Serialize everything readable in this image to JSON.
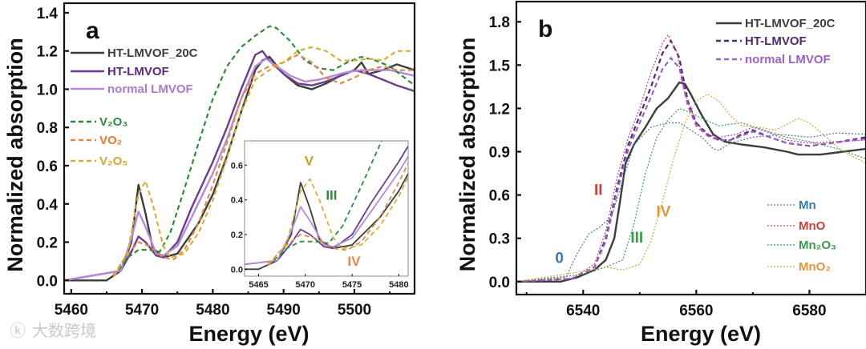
{
  "watermark": "大数跨境",
  "chart_data": [
    {
      "type": "line",
      "panel_label": "a",
      "xlabel": "Energy (eV)",
      "ylabel": "Normalized absorption",
      "xlim": [
        5459,
        5508.5
      ],
      "ylim": [
        -0.07,
        1.45
      ],
      "xticks": [
        5460,
        5470,
        5480,
        5490,
        5500
      ],
      "yticks": [
        0.0,
        0.2,
        0.4,
        0.6,
        0.8,
        1.0,
        1.2,
        1.4
      ],
      "ytick_labels": [
        "0.0",
        "0.2",
        "0.4",
        "0.6",
        "0.8",
        "1.0",
        "1.2",
        "1.4"
      ],
      "legend": "top-left",
      "series": [
        {
          "name": "HT-LMVOF_20C",
          "color": "#3d3d3d",
          "style": "solid",
          "text_color": "#3d3d3d",
          "x": [
            5459,
            5465,
            5467,
            5468.5,
            5469.5,
            5470.5,
            5471.5,
            5473,
            5475,
            5478,
            5480,
            5482,
            5484,
            5486,
            5487,
            5488,
            5490,
            5492,
            5494,
            5496,
            5498,
            5500,
            5501,
            5502,
            5504,
            5506,
            5508.5
          ],
          "y": [
            0,
            0,
            0.05,
            0.2,
            0.5,
            0.35,
            0.17,
            0.12,
            0.14,
            0.3,
            0.45,
            0.65,
            0.88,
            1.1,
            1.15,
            1.17,
            1.08,
            1.02,
            1.0,
            1.03,
            1.07,
            1.1,
            1.14,
            1.08,
            1.1,
            1.13,
            1.1
          ]
        },
        {
          "name": "HT-LMVOF",
          "color": "#6a3d8f",
          "style": "solid",
          "text_color": "#5a2a80",
          "x": [
            5459,
            5467,
            5468.5,
            5469.5,
            5470.5,
            5472,
            5473,
            5475,
            5477,
            5480,
            5482,
            5484,
            5486,
            5487,
            5488,
            5490,
            5492,
            5494,
            5496,
            5498,
            5500,
            5502,
            5504,
            5506,
            5508.5
          ],
          "y": [
            0,
            0.05,
            0.15,
            0.23,
            0.2,
            0.13,
            0.12,
            0.2,
            0.38,
            0.62,
            0.8,
            1.0,
            1.18,
            1.2,
            1.15,
            1.08,
            1.03,
            1.02,
            1.04,
            1.07,
            1.1,
            1.08,
            1.05,
            1.02,
            0.99
          ]
        },
        {
          "name": "normal LMVOF",
          "color": "#b58ad6",
          "style": "solid",
          "text_color": "#a77bcc",
          "x": [
            5459,
            5467,
            5468.5,
            5469.5,
            5470.5,
            5472,
            5473,
            5475,
            5477,
            5480,
            5482,
            5484,
            5486,
            5487.5,
            5489,
            5491,
            5493,
            5495,
            5497,
            5499,
            5501,
            5503,
            5505,
            5508.5
          ],
          "y": [
            0,
            0.05,
            0.22,
            0.36,
            0.28,
            0.14,
            0.13,
            0.18,
            0.33,
            0.56,
            0.74,
            0.95,
            1.12,
            1.16,
            1.12,
            1.07,
            1.04,
            1.05,
            1.07,
            1.09,
            1.1,
            1.1,
            1.1,
            1.07
          ]
        },
        {
          "name": "V₂O₃",
          "color": "#2e8b3e",
          "style": "dashed",
          "text_color": "#2e8b3e",
          "x": [
            5466,
            5468,
            5469.5,
            5471,
            5472.5,
            5474,
            5476,
            5478,
            5480,
            5482,
            5484,
            5486,
            5488,
            5489,
            5491,
            5493,
            5495,
            5497,
            5499,
            5501,
            5503,
            5505,
            5508.5
          ],
          "y": [
            0.02,
            0.12,
            0.16,
            0.16,
            0.15,
            0.25,
            0.48,
            0.72,
            0.95,
            1.12,
            1.22,
            1.28,
            1.33,
            1.32,
            1.25,
            1.15,
            1.11,
            1.1,
            1.14,
            1.17,
            1.15,
            1.12,
            1.02
          ]
        },
        {
          "name": "VO₂",
          "color": "#e08a4a",
          "style": "dashed",
          "text_color": "#e07a3a",
          "x": [
            5466,
            5468,
            5469.5,
            5471,
            5473,
            5474.5,
            5476,
            5478,
            5480,
            5482,
            5484,
            5486,
            5488,
            5490,
            5492,
            5494,
            5496,
            5498,
            5500,
            5502,
            5504,
            5506,
            5508.5
          ],
          "y": [
            0.03,
            0.14,
            0.2,
            0.18,
            0.12,
            0.11,
            0.16,
            0.3,
            0.5,
            0.72,
            0.95,
            1.08,
            1.12,
            1.14,
            1.18,
            1.14,
            1.06,
            1.03,
            1.06,
            1.1,
            1.12,
            1.1,
            1.1
          ]
        },
        {
          "name": "V₂O₅",
          "color": "#d4b03c",
          "style": "dashed",
          "text_color": "#d0a830",
          "x": [
            5466,
            5468,
            5469.5,
            5470.5,
            5471.5,
            5473,
            5474,
            5476,
            5478,
            5480,
            5482,
            5484,
            5486,
            5488,
            5490,
            5492,
            5494,
            5496,
            5498,
            5500,
            5502,
            5504,
            5506,
            5508.5
          ],
          "y": [
            0.02,
            0.15,
            0.45,
            0.52,
            0.4,
            0.18,
            0.12,
            0.14,
            0.25,
            0.42,
            0.64,
            0.88,
            1.05,
            1.1,
            1.14,
            1.2,
            1.22,
            1.2,
            1.15,
            1.15,
            1.16,
            1.15,
            1.2,
            1.2
          ]
        }
      ],
      "inset": {
        "xlim": [
          5463.5,
          5481
        ],
        "ylim": [
          -0.04,
          0.74
        ],
        "xticks": [
          5465,
          5470,
          5475,
          5480
        ],
        "yticks": [
          0.0,
          0.2,
          0.4,
          0.6
        ],
        "ytick_labels": [
          "0.0",
          "0.2",
          "0.4",
          "0.6"
        ],
        "annotations": [
          {
            "text": "V",
            "x": 5470.4,
            "y": 0.6,
            "color": "#c9a22a"
          },
          {
            "text": "III",
            "x": 5472.8,
            "y": 0.4,
            "color": "#2e8b3e"
          },
          {
            "text": "IV",
            "x": 5475.2,
            "y": 0.02,
            "color": "#e08a4a"
          }
        ]
      }
    },
    {
      "type": "line",
      "panel_label": "b",
      "xlabel": "Energy (eV)",
      "ylabel": "Normalized absorption",
      "xlim": [
        6528.2,
        6590
      ],
      "ylim": [
        -0.09,
        1.94
      ],
      "xticks": [
        6540,
        6560,
        6580
      ],
      "yticks": [
        0.0,
        0.3,
        0.6,
        0.9,
        1.2,
        1.5,
        1.8
      ],
      "ytick_labels": [
        "0.0",
        "0.3",
        "0.6",
        "0.9",
        "1.2",
        "1.5",
        "1.8"
      ],
      "legend": "top-right / bottom-right",
      "series": [
        {
          "name": "HT-LMVOF_20C",
          "color": "#3d3d3d",
          "style": "solid",
          "text_color": "#3d3d3d",
          "x": [
            6528,
            6536,
            6539,
            6542,
            6544,
            6545.5,
            6546.5,
            6547.5,
            6549,
            6551,
            6553,
            6555,
            6557,
            6558,
            6559,
            6561,
            6563,
            6565,
            6568,
            6572,
            6576,
            6578,
            6582,
            6586,
            6590
          ],
          "y": [
            0,
            0,
            0.03,
            0.08,
            0.15,
            0.3,
            0.55,
            0.82,
            0.95,
            1.07,
            1.2,
            1.27,
            1.38,
            1.37,
            1.3,
            1.15,
            1.02,
            0.97,
            0.95,
            0.93,
            0.9,
            0.88,
            0.88,
            0.9,
            0.92
          ]
        },
        {
          "name": "HT-LMVOF",
          "color": "#4b2a6e",
          "style": "dashed",
          "text_color": "#4b2a6e",
          "x": [
            6528,
            6538,
            6542,
            6544,
            6546,
            6548,
            6550,
            6552,
            6554,
            6555.5,
            6557,
            6558.5,
            6560,
            6562,
            6564,
            6566,
            6568,
            6570,
            6573,
            6576,
            6580,
            6584,
            6590
          ],
          "y": [
            0,
            0.02,
            0.1,
            0.3,
            0.65,
            0.95,
            1.15,
            1.35,
            1.58,
            1.67,
            1.55,
            1.25,
            1.1,
            1.02,
            0.98,
            0.98,
            1.02,
            1.05,
            1.0,
            0.96,
            0.94,
            0.96,
            1.0
          ]
        },
        {
          "name": "normal LMVOF",
          "color": "#9a62c6",
          "style": "dashed",
          "text_color": "#9a62c6",
          "x": [
            6528,
            6538,
            6542,
            6544,
            6546,
            6548,
            6550,
            6552,
            6554,
            6555.5,
            6557,
            6558.5,
            6560,
            6562,
            6564,
            6566,
            6568,
            6570,
            6573,
            6576,
            6580,
            6584,
            6590
          ],
          "y": [
            0,
            0.02,
            0.1,
            0.28,
            0.62,
            0.92,
            1.1,
            1.28,
            1.47,
            1.55,
            1.48,
            1.22,
            1.08,
            1.01,
            0.98,
            0.98,
            1.01,
            1.04,
            1.0,
            0.96,
            0.94,
            0.96,
            0.99
          ]
        },
        {
          "name": "Mn",
          "color": "#4a7a9a",
          "style": "dotted",
          "text_color": "#3a7aaa",
          "x": [
            6528,
            6537,
            6539,
            6541,
            6543,
            6545,
            6547,
            6549,
            6552,
            6555,
            6557,
            6559,
            6561,
            6563,
            6564,
            6566,
            6570,
            6575,
            6580,
            6585,
            6590
          ],
          "y": [
            0,
            0.03,
            0.2,
            0.33,
            0.38,
            0.45,
            0.7,
            0.95,
            1.07,
            1.1,
            1.1,
            1.05,
            1.0,
            0.92,
            0.91,
            0.96,
            1.0,
            1.02,
            1.0,
            1.03,
            1.02
          ]
        },
        {
          "name": "MnO",
          "color": "#c03a9e",
          "style": "dotted",
          "text_color": "#c8413a",
          "x": [
            6528,
            6538,
            6542,
            6544,
            6546,
            6548,
            6550,
            6552,
            6554,
            6555,
            6556.5,
            6558,
            6560,
            6562,
            6564,
            6567,
            6570,
            6573,
            6576,
            6580,
            6590
          ],
          "y": [
            0,
            0.02,
            0.12,
            0.35,
            0.72,
            1.0,
            1.2,
            1.45,
            1.65,
            1.71,
            1.6,
            1.3,
            1.1,
            1.02,
            1.0,
            1.02,
            1.07,
            1.03,
            0.98,
            0.96,
            0.98
          ]
        },
        {
          "name": "Mn₂O₃",
          "color": "#3a9a5a",
          "style": "dotted",
          "text_color": "#3a9a4a",
          "x": [
            6528,
            6540,
            6544,
            6547,
            6549,
            6551,
            6553,
            6555,
            6557,
            6559,
            6561,
            6564,
            6568,
            6572,
            6576,
            6580,
            6585,
            6590
          ],
          "y": [
            0,
            0.05,
            0.1,
            0.15,
            0.4,
            0.75,
            1.0,
            1.12,
            1.2,
            1.17,
            1.13,
            1.08,
            1.1,
            1.05,
            1.0,
            0.97,
            0.92,
            0.85
          ]
        },
        {
          "name": "MnO₂",
          "color": "#e0a040",
          "style": "dotted",
          "text_color": "#e0963a",
          "x": [
            6528,
            6540,
            6544,
            6547,
            6550,
            6552,
            6554,
            6556,
            6558,
            6560,
            6562,
            6564,
            6566,
            6568,
            6571,
            6574,
            6578,
            6580,
            6583,
            6586,
            6590
          ],
          "y": [
            0,
            0.07,
            0.1,
            0.08,
            0.12,
            0.28,
            0.55,
            0.85,
            1.1,
            1.25,
            1.3,
            1.25,
            1.15,
            1.08,
            1.07,
            1.05,
            1.13,
            1.1,
            1.0,
            0.9,
            0.82
          ]
        }
      ],
      "annotations": [
        {
          "text": "0",
          "x": 6535.8,
          "y": 0.13,
          "color": "#3a7aaa"
        },
        {
          "text": "II",
          "x": 6542.7,
          "y": 0.6,
          "color": "#c8413a"
        },
        {
          "text": "III",
          "x": 6549.5,
          "y": 0.27,
          "color": "#3a9a4a"
        },
        {
          "text": "IV",
          "x": 6554.2,
          "y": 0.45,
          "color": "#e0963a"
        }
      ]
    }
  ]
}
